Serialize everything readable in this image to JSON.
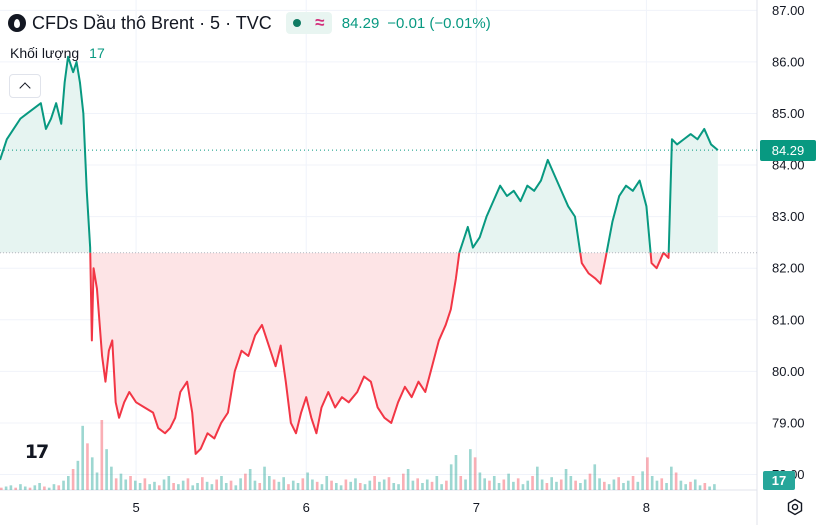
{
  "header": {
    "title": "CFDs Dầu thô Brent · 5 · TVC",
    "price": "84.29",
    "change": "−0.01 (−0.01%)",
    "volume_label": "Khối lượng",
    "volume_value": "17",
    "icons": [
      "symbol-logo-icon",
      "market-open-dot-icon",
      "wave-icon",
      "chevron-up-icon",
      "tradingview-logo-icon",
      "settings-icon"
    ]
  },
  "badges": {
    "last_price": "84.29",
    "last_volume": "17"
  },
  "colors": {
    "up": "#089981",
    "down": "#f23645",
    "up_fill": "#e6f4f1",
    "down_fill": "#fde4e6",
    "grid": "#f0f3fa",
    "axis_text": "#131722"
  },
  "chart_data": {
    "type": "line",
    "baseline": 82.3,
    "last_price": 84.29,
    "y_range": [
      77.7,
      87.2
    ],
    "y_ticks": [
      "87.00",
      "86.00",
      "85.00",
      "84.00",
      "83.00",
      "82.00",
      "81.00",
      "80.00",
      "79.00",
      "78.00"
    ],
    "x_range": [
      4.2,
      8.65
    ],
    "x_ticks": [
      {
        "value": 5,
        "label": "5"
      },
      {
        "value": 6,
        "label": "6"
      },
      {
        "value": 7,
        "label": "7"
      },
      {
        "value": 8,
        "label": "8"
      }
    ],
    "series": [
      {
        "points": [
          [
            4.2,
            84.1
          ],
          [
            4.24,
            84.5
          ],
          [
            4.28,
            84.7
          ],
          [
            4.32,
            84.9
          ],
          [
            4.36,
            85.0
          ],
          [
            4.4,
            85.1
          ],
          [
            4.44,
            85.2
          ],
          [
            4.47,
            84.7
          ],
          [
            4.5,
            84.9
          ],
          [
            4.53,
            85.2
          ],
          [
            4.56,
            84.8
          ],
          [
            4.58,
            85.6
          ],
          [
            4.6,
            86.1
          ],
          [
            4.63,
            85.8
          ],
          [
            4.65,
            86.0
          ],
          [
            4.67,
            85.6
          ],
          [
            4.69,
            85.0
          ],
          [
            4.71,
            83.5
          ],
          [
            4.73,
            82.4
          ],
          [
            4.74,
            80.6
          ],
          [
            4.75,
            82.0
          ],
          [
            4.77,
            81.6
          ],
          [
            4.8,
            80.3
          ],
          [
            4.82,
            79.8
          ],
          [
            4.84,
            80.4
          ],
          [
            4.86,
            80.6
          ],
          [
            4.88,
            79.4
          ],
          [
            4.9,
            79.1
          ],
          [
            4.93,
            79.4
          ],
          [
            4.96,
            79.6
          ],
          [
            5.0,
            79.4
          ],
          [
            5.05,
            79.3
          ],
          [
            5.1,
            79.2
          ],
          [
            5.13,
            78.9
          ],
          [
            5.17,
            78.8
          ],
          [
            5.2,
            78.9
          ],
          [
            5.23,
            79.1
          ],
          [
            5.26,
            79.6
          ],
          [
            5.3,
            79.8
          ],
          [
            5.33,
            79.2
          ],
          [
            5.35,
            78.4
          ],
          [
            5.38,
            78.5
          ],
          [
            5.42,
            78.8
          ],
          [
            5.46,
            78.7
          ],
          [
            5.5,
            79.0
          ],
          [
            5.54,
            79.2
          ],
          [
            5.58,
            80.0
          ],
          [
            5.62,
            80.4
          ],
          [
            5.66,
            80.3
          ],
          [
            5.7,
            80.7
          ],
          [
            5.74,
            80.9
          ],
          [
            5.78,
            80.5
          ],
          [
            5.82,
            80.1
          ],
          [
            5.85,
            80.5
          ],
          [
            5.88,
            79.8
          ],
          [
            5.91,
            79.0
          ],
          [
            5.94,
            78.8
          ],
          [
            5.97,
            79.2
          ],
          [
            6.0,
            79.5
          ],
          [
            6.03,
            79.1
          ],
          [
            6.06,
            78.8
          ],
          [
            6.09,
            79.3
          ],
          [
            6.13,
            79.6
          ],
          [
            6.17,
            79.3
          ],
          [
            6.21,
            79.5
          ],
          [
            6.25,
            79.4
          ],
          [
            6.3,
            79.6
          ],
          [
            6.34,
            79.9
          ],
          [
            6.38,
            79.8
          ],
          [
            6.42,
            79.3
          ],
          [
            6.46,
            79.1
          ],
          [
            6.5,
            79.0
          ],
          [
            6.54,
            79.4
          ],
          [
            6.58,
            79.7
          ],
          [
            6.62,
            79.5
          ],
          [
            6.66,
            79.8
          ],
          [
            6.7,
            79.6
          ],
          [
            6.74,
            80.1
          ],
          [
            6.78,
            80.6
          ],
          [
            6.82,
            80.9
          ],
          [
            6.85,
            81.2
          ],
          [
            6.88,
            81.8
          ],
          [
            6.9,
            82.3
          ],
          [
            6.92,
            82.5
          ],
          [
            6.95,
            82.8
          ],
          [
            6.98,
            82.4
          ],
          [
            7.02,
            82.6
          ],
          [
            7.06,
            83.0
          ],
          [
            7.1,
            83.3
          ],
          [
            7.14,
            83.6
          ],
          [
            7.18,
            83.4
          ],
          [
            7.22,
            83.5
          ],
          [
            7.26,
            83.3
          ],
          [
            7.3,
            83.6
          ],
          [
            7.34,
            83.5
          ],
          [
            7.38,
            83.7
          ],
          [
            7.42,
            84.1
          ],
          [
            7.46,
            83.8
          ],
          [
            7.5,
            83.5
          ],
          [
            7.54,
            83.2
          ],
          [
            7.58,
            83.0
          ],
          [
            7.62,
            82.1
          ],
          [
            7.66,
            81.9
          ],
          [
            7.7,
            81.8
          ],
          [
            7.73,
            81.7
          ],
          [
            7.76,
            82.2
          ],
          [
            7.8,
            82.9
          ],
          [
            7.84,
            83.4
          ],
          [
            7.88,
            83.6
          ],
          [
            7.92,
            83.5
          ],
          [
            7.96,
            83.7
          ],
          [
            8.0,
            83.2
          ],
          [
            8.03,
            82.1
          ],
          [
            8.06,
            82.0
          ],
          [
            8.1,
            82.3
          ],
          [
            8.13,
            82.2
          ],
          [
            8.15,
            84.5
          ],
          [
            8.18,
            84.4
          ],
          [
            8.22,
            84.5
          ],
          [
            8.26,
            84.6
          ],
          [
            8.3,
            84.5
          ],
          [
            8.34,
            84.7
          ],
          [
            8.38,
            84.4
          ],
          [
            8.42,
            84.29
          ]
        ]
      }
    ],
    "volume_bars": [
      2,
      3,
      4,
      2,
      5,
      3,
      2,
      4,
      6,
      3,
      2,
      5,
      4,
      8,
      12,
      18,
      25,
      55,
      40,
      28,
      15,
      60,
      35,
      20,
      10,
      14,
      9,
      12,
      8,
      6,
      10,
      5,
      7,
      4,
      9,
      12,
      6,
      5,
      8,
      10,
      4,
      6,
      11,
      7,
      5,
      9,
      12,
      6,
      8,
      4,
      10,
      14,
      18,
      8,
      6,
      20,
      12,
      9,
      7,
      11,
      5,
      8,
      6,
      10,
      15,
      9,
      7,
      5,
      12,
      8,
      6,
      4,
      9,
      7,
      10,
      6,
      5,
      8,
      12,
      7,
      9,
      11,
      6,
      5,
      14,
      18,
      8,
      10,
      6,
      9,
      7,
      12,
      5,
      8,
      22,
      30,
      12,
      9,
      35,
      28,
      15,
      10,
      8,
      12,
      6,
      9,
      14,
      7,
      10,
      5,
      8,
      12,
      20,
      9,
      6,
      11,
      7,
      9,
      18,
      12,
      8,
      6,
      9,
      14,
      22,
      10,
      7,
      5,
      9,
      11,
      6,
      8,
      12,
      7,
      16,
      28,
      12,
      8,
      10,
      6,
      20,
      15,
      8,
      5,
      7,
      9,
      4,
      6,
      3,
      5
    ]
  }
}
